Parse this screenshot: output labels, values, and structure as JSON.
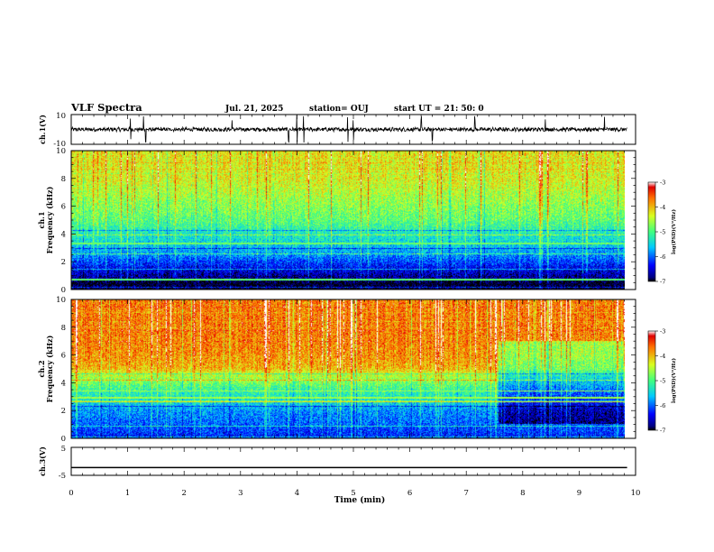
{
  "header": {
    "title": "VLF Spectra",
    "date": "Jul. 21, 2025",
    "station": "station= OUJ",
    "start_time": "start UT = 21: 50: 0"
  },
  "chart_data": [
    {
      "type": "line",
      "name": "ch1-waveform",
      "ylabel": "ch.1(V)",
      "ylim": [
        -10,
        10
      ],
      "yticks": [
        "10",
        "-10"
      ],
      "baseline": 0,
      "noise_amplitude": 1.2,
      "spike_times_min": [
        1.05,
        1.28,
        1.32,
        2.85,
        3.85,
        4.0,
        4.12,
        4.9,
        5.0,
        6.2,
        6.4,
        7.15,
        8.4,
        9.45
      ],
      "xlim": [
        0,
        9.85
      ]
    },
    {
      "type": "heatmap",
      "name": "ch1-spectrogram",
      "ylabel_top": "ch.1",
      "ylabel": "Frequency (kHz)",
      "xlim": [
        0,
        9.85
      ],
      "ylim": [
        0,
        10
      ],
      "yticks": [
        "0",
        "2",
        "4",
        "6",
        "8",
        "10"
      ],
      "colorbar": {
        "label": "log(PSD)(V²/Hz)",
        "range": [
          -7,
          -3
        ],
        "ticks": [
          "-3",
          "-4",
          "-5",
          "-6",
          "-7"
        ]
      },
      "freq_profile": [
        {
          "f": 0.0,
          "v": -7.0
        },
        {
          "f": 0.5,
          "v": -7.0
        },
        {
          "f": 0.9,
          "v": -6.7
        },
        {
          "f": 1.5,
          "v": -6.4
        },
        {
          "f": 2.0,
          "v": -6.1
        },
        {
          "f": 2.5,
          "v": -5.8
        },
        {
          "f": 3.0,
          "v": -5.6
        },
        {
          "f": 3.5,
          "v": -5.4
        },
        {
          "f": 4.0,
          "v": -5.3
        },
        {
          "f": 5.0,
          "v": -4.9
        },
        {
          "f": 6.0,
          "v": -4.7
        },
        {
          "f": 7.0,
          "v": -4.5
        },
        {
          "f": 8.0,
          "v": -4.3
        },
        {
          "f": 10.0,
          "v": -4.2
        }
      ]
    },
    {
      "type": "heatmap",
      "name": "ch2-spectrogram",
      "ylabel_top": "ch.2",
      "ylabel": "Frequency (kHz)",
      "xlim": [
        0,
        9.85
      ],
      "ylim": [
        0,
        10
      ],
      "yticks": [
        "0",
        "2",
        "4",
        "6",
        "8",
        "10"
      ],
      "colorbar": {
        "label": "log(PSD)(V²/Hz)",
        "range": [
          -7,
          -3
        ],
        "ticks": [
          "-3",
          "-4",
          "-5",
          "-6",
          "-7"
        ]
      },
      "freq_profile": [
        {
          "f": 0.0,
          "v": -6.3
        },
        {
          "f": 1.0,
          "v": -6.0
        },
        {
          "f": 2.0,
          "v": -5.8
        },
        {
          "f": 2.5,
          "v": -5.5
        },
        {
          "f": 3.0,
          "v": -5.3
        },
        {
          "f": 3.5,
          "v": -5.1
        },
        {
          "f": 4.0,
          "v": -4.8
        },
        {
          "f": 4.5,
          "v": -4.5
        },
        {
          "f": 5.0,
          "v": -4.0
        },
        {
          "f": 6.0,
          "v": -3.8
        },
        {
          "f": 8.0,
          "v": -3.7
        },
        {
          "f": 10.0,
          "v": -3.7
        }
      ],
      "regime_change_min": 7.6,
      "regime_change_offset": -0.8
    },
    {
      "type": "line",
      "name": "ch3-waveform",
      "ylabel": "ch.3(V)",
      "ylim": [
        -5,
        5
      ],
      "yticks": [
        "5",
        "-5"
      ],
      "baseline": -2.2,
      "xlim": [
        0,
        9.85
      ]
    }
  ],
  "xaxis": {
    "label": "Time (min)",
    "xlim": [
      0,
      10
    ],
    "ticks": [
      "0",
      "1",
      "2",
      "3",
      "4",
      "5",
      "6",
      "7",
      "8",
      "9",
      "10"
    ]
  }
}
